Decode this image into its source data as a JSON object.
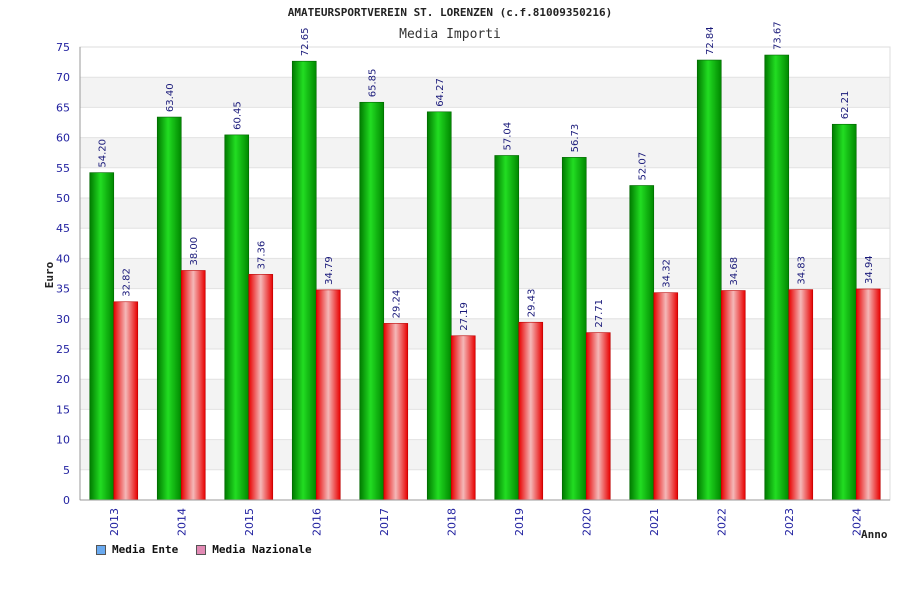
{
  "chart_data": {
    "type": "bar",
    "title": "AMATEURSPORTVEREIN ST. LORENZEN (c.f.81009350216)",
    "subtitle": "Media Importi",
    "xlabel": "Anno",
    "ylabel": "Euro",
    "ylim": [
      0,
      75
    ],
    "yticks": [
      0,
      5,
      10,
      15,
      20,
      25,
      30,
      35,
      40,
      45,
      50,
      55,
      60,
      65,
      70,
      75
    ],
    "grid": true,
    "legend_position": "bottom-left",
    "categories": [
      "2013",
      "2014",
      "2015",
      "2016",
      "2017",
      "2018",
      "2019",
      "2020",
      "2021",
      "2022",
      "2023",
      "2024"
    ],
    "series": [
      {
        "name": "Media Ente",
        "values": [
          54.2,
          63.4,
          60.45,
          72.65,
          65.85,
          64.27,
          57.04,
          56.73,
          52.07,
          72.84,
          73.67,
          62.21
        ],
        "labels": [
          "54.20",
          "63.40",
          "60.45",
          "72.65",
          "65.85",
          "64.27",
          "57.04",
          "56.73",
          "52.07",
          "72.84",
          "73.67",
          "62.21"
        ],
        "color": "#00aa00",
        "legend_color": "#6aaaf0"
      },
      {
        "name": "Media Nazionale",
        "values": [
          32.82,
          38.0,
          37.36,
          34.79,
          29.24,
          27.19,
          29.43,
          27.71,
          34.32,
          34.68,
          34.83,
          34.94
        ],
        "labels": [
          "32.82",
          "38.00",
          "37.36",
          "34.79",
          "29.24",
          "27.19",
          "29.43",
          "27.71",
          "34.32",
          "34.68",
          "34.83",
          "34.94"
        ],
        "color": "#ee1111",
        "legend_color": "#e28ab4"
      }
    ]
  }
}
